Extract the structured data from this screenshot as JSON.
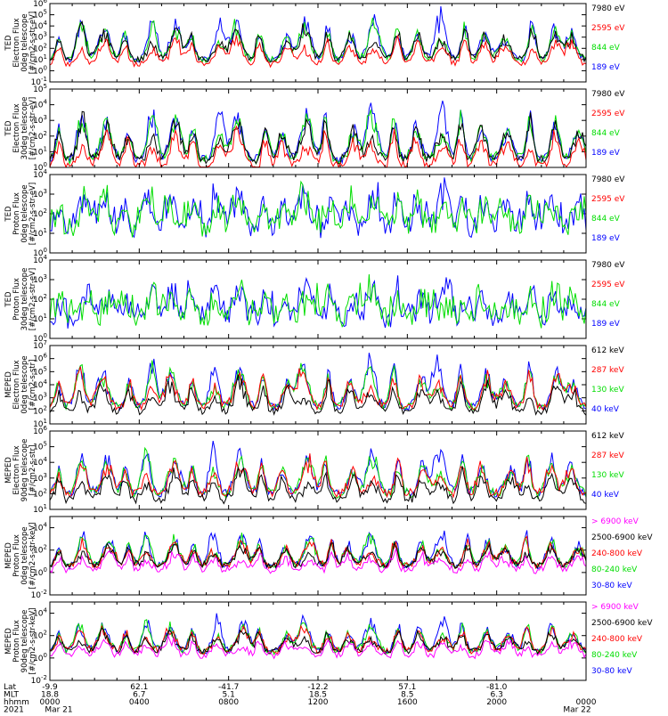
{
  "colors": {
    "black": "#000000",
    "red": "#ff0000",
    "green": "#00dd00",
    "blue": "#0000ff",
    "magenta": "#ff00ff"
  },
  "panels": [
    {
      "ylabel": [
        "TED",
        "Electron Flux",
        "0deg telescope",
        "[#/cm2-s-str-eV]"
      ],
      "ytick_labels": [
        "10^-1",
        "10^0",
        "10^1",
        "10^2",
        "10^3",
        "10^4",
        "10^5",
        "10^6"
      ],
      "yexp_range": [
        -1,
        6
      ],
      "legend": [
        {
          "text": "7980 eV",
          "color": "black"
        },
        {
          "text": "2595 eV",
          "color": "red"
        },
        {
          "text": "844 eV",
          "color": "green"
        },
        {
          "text": "189 eV",
          "color": "blue"
        }
      ],
      "series_colors": [
        "blue",
        "green",
        "black",
        "red"
      ],
      "pattern": "electron",
      "floor": 1.0,
      "amp": 4.0,
      "seed": 11
    },
    {
      "ylabel": [
        "TED",
        "Electron Flux",
        "30deg telescope",
        "[#/cm2-s-str-eV]"
      ],
      "ytick_labels": [
        "10^0",
        "10^1",
        "10^2",
        "10^3",
        "10^4",
        "10^5"
      ],
      "yexp_range": [
        0,
        5
      ],
      "legend": [
        {
          "text": "7980 eV",
          "color": "black"
        },
        {
          "text": "2595 eV",
          "color": "red"
        },
        {
          "text": "844 eV",
          "color": "green"
        },
        {
          "text": "189 eV",
          "color": "blue"
        }
      ],
      "series_colors": [
        "blue",
        "green",
        "black",
        "red"
      ],
      "pattern": "electron",
      "floor": 0.5,
      "amp": 3.5,
      "seed": 23
    },
    {
      "ylabel": [
        "TED",
        "Proton Flux",
        "0deg telescope",
        "[#/cm2-s-str-eV]"
      ],
      "ytick_labels": [
        "10^0",
        "10^1",
        "10^2",
        "10^3",
        "10^4"
      ],
      "yexp_range": [
        0,
        4
      ],
      "legend": [
        {
          "text": "7980 eV",
          "color": "black"
        },
        {
          "text": "2595 eV",
          "color": "red"
        },
        {
          "text": "844 eV",
          "color": "green"
        },
        {
          "text": "189 eV",
          "color": "blue"
        }
      ],
      "series_colors": [
        "blue",
        "green"
      ],
      "pattern": "proton",
      "floor": 1.3,
      "amp": 1.8,
      "seed": 37
    },
    {
      "ylabel": [
        "TED",
        "Proton Flux",
        "30deg telescope",
        "[#/cm2-s-str-eV]"
      ],
      "ytick_labels": [
        "10^0",
        "10^1",
        "10^2",
        "10^3",
        "10^4"
      ],
      "yexp_range": [
        0,
        4
      ],
      "legend": [
        {
          "text": "7980 eV",
          "color": "black"
        },
        {
          "text": "2595 eV",
          "color": "red"
        },
        {
          "text": "844 eV",
          "color": "green"
        },
        {
          "text": "189 eV",
          "color": "blue"
        }
      ],
      "series_colors": [
        "blue",
        "green"
      ],
      "pattern": "proton",
      "floor": 1.0,
      "amp": 1.6,
      "seed": 41
    },
    {
      "ylabel": [
        "MEPED",
        "Electron Flux",
        "0deg telescope",
        "[#/cm2-s-str]"
      ],
      "ytick_labels": [
        "10^1",
        "10^2",
        "10^3",
        "10^4",
        "10^5",
        "10^6",
        "10^7"
      ],
      "yexp_range": [
        1,
        7
      ],
      "legend": [
        {
          "text": "612 keV",
          "color": "black"
        },
        {
          "text": "287 keV",
          "color": "red"
        },
        {
          "text": "130 keV",
          "color": "green"
        },
        {
          "text": "40 keV",
          "color": "blue"
        }
      ],
      "series_colors": [
        "blue",
        "green",
        "red",
        "black"
      ],
      "pattern": "meped_e",
      "floor": 2.3,
      "amp": 3.8,
      "seed": 53
    },
    {
      "ylabel": [
        "MEPED",
        "Electron Flux",
        "90deg telescope",
        "[#/cm2-s-str]"
      ],
      "ytick_labels": [
        "10^1",
        "10^2",
        "10^3",
        "10^4",
        "10^5",
        "10^6"
      ],
      "yexp_range": [
        1,
        6
      ],
      "legend": [
        {
          "text": "612 keV",
          "color": "black"
        },
        {
          "text": "287 keV",
          "color": "red"
        },
        {
          "text": "130 keV",
          "color": "green"
        },
        {
          "text": "40 keV",
          "color": "blue"
        }
      ],
      "series_colors": [
        "blue",
        "green",
        "red",
        "black"
      ],
      "pattern": "meped_e",
      "floor": 2.0,
      "amp": 3.0,
      "seed": 67
    },
    {
      "ylabel": [
        "MEPED",
        "Proton Flux",
        "0deg telescope",
        "[#/cm2-s-str-keV]"
      ],
      "ytick_labels": [
        "10^-2",
        "10^0",
        "10^2",
        "10^4"
      ],
      "yexp_range": [
        -2,
        5
      ],
      "legend": [
        {
          "text": "> 6900 keV",
          "color": "magenta"
        },
        {
          "text": "2500-6900 keV",
          "color": "black"
        },
        {
          "text": "240-800 keV",
          "color": "red"
        },
        {
          "text": "80-240 keV",
          "color": "green"
        },
        {
          "text": "30-80 keV",
          "color": "blue"
        }
      ],
      "series_colors": [
        "blue",
        "green",
        "red",
        "black",
        "magenta"
      ],
      "pattern": "meped_p",
      "floor": 0.6,
      "amp": 3.2,
      "seed": 79
    },
    {
      "ylabel": [
        "MEPED",
        "Proton Flux",
        "90deg telescope",
        "[#/cm2-s-str-keV]"
      ],
      "ytick_labels": [
        "10^-2",
        "10^0",
        "10^2",
        "10^4"
      ],
      "yexp_range": [
        -2,
        5
      ],
      "legend": [
        {
          "text": "> 6900 keV",
          "color": "magenta"
        },
        {
          "text": "2500-6900 keV",
          "color": "black"
        },
        {
          "text": "240-800 keV",
          "color": "red"
        },
        {
          "text": "80-240 keV",
          "color": "green"
        },
        {
          "text": "30-80 keV",
          "color": "blue"
        }
      ],
      "series_colors": [
        "blue",
        "green",
        "red",
        "black",
        "magenta"
      ],
      "pattern": "meped_p",
      "floor": 0.6,
      "amp": 3.0,
      "seed": 97
    }
  ],
  "xaxis": {
    "row_labels": [
      "Lat",
      "MLT",
      "hhmm",
      "2021"
    ],
    "ticks": [
      {
        "lat": "-9.9",
        "mlt": "18.8",
        "hhmm": "0000",
        "date": "Mar 21"
      },
      {
        "lat": "62.1",
        "mlt": "6.7",
        "hhmm": "0400",
        "date": ""
      },
      {
        "lat": "-41.7",
        "mlt": "5.1",
        "hhmm": "0800",
        "date": ""
      },
      {
        "lat": "-12.2",
        "mlt": "18.5",
        "hhmm": "1200",
        "date": ""
      },
      {
        "lat": "57.1",
        "mlt": "8.5",
        "hhmm": "1600",
        "date": ""
      },
      {
        "lat": "-81.0",
        "mlt": "6.3",
        "hhmm": "2000",
        "date": ""
      },
      {
        "lat": "",
        "mlt": "",
        "hhmm": "0000",
        "date": "Mar 22"
      }
    ]
  },
  "chart_data": {
    "type": "line",
    "x_range_hhmm": [
      "0000 Mar 21 2021",
      "0000 Mar 22 2021"
    ],
    "y_scale": "log",
    "panel_count": 8
  }
}
